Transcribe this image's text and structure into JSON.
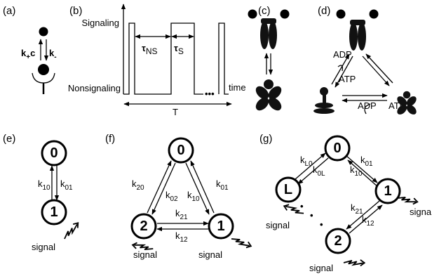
{
  "a": {
    "label": "(a)",
    "forward": {
      "k": "k",
      "sub": "+",
      "after": "c"
    },
    "backward": {
      "k": "k",
      "sub": "-"
    }
  },
  "b": {
    "label": "(b)",
    "y_labels": [
      "Signaling",
      "Nonsignaling"
    ],
    "x_label": "time",
    "tau_ns": {
      "symbol": "τ",
      "sub": "NS"
    },
    "tau_s": {
      "symbol": "τ",
      "sub": "S"
    },
    "period": "T"
  },
  "c": {
    "label": "(c)"
  },
  "d": {
    "label": "(d)",
    "nucleotides": [
      "ADP",
      "ATP",
      "ADP",
      "ATP"
    ]
  },
  "e": {
    "label": "(e)",
    "nodes": [
      "0",
      "1"
    ],
    "rates": [
      {
        "k": "k",
        "sub": "10"
      },
      {
        "k": "k",
        "sub": "01"
      }
    ],
    "signals": [
      "signal"
    ]
  },
  "f": {
    "label": "(f)",
    "nodes": [
      "0",
      "2",
      "1"
    ],
    "rates": [
      {
        "k": "k",
        "sub": "20"
      },
      {
        "k": "k",
        "sub": "02"
      },
      {
        "k": "k",
        "sub": "10"
      },
      {
        "k": "k",
        "sub": "01"
      },
      {
        "k": "k",
        "sub": "21"
      },
      {
        "k": "k",
        "sub": "12"
      }
    ],
    "signals": [
      "signal",
      "signal"
    ]
  },
  "g": {
    "label": "(g)",
    "nodes": [
      "0",
      "L",
      "1",
      "2"
    ],
    "rates": [
      {
        "k": "k",
        "sub": "L0"
      },
      {
        "k": "k",
        "sub": "0L"
      },
      {
        "k": "k",
        "sub": "01"
      },
      {
        "k": "k",
        "sub": "10"
      },
      {
        "k": "k",
        "sub": "21"
      },
      {
        "k": "k",
        "sub": "12"
      }
    ],
    "signals": [
      "signal",
      "signal",
      "signal"
    ]
  }
}
